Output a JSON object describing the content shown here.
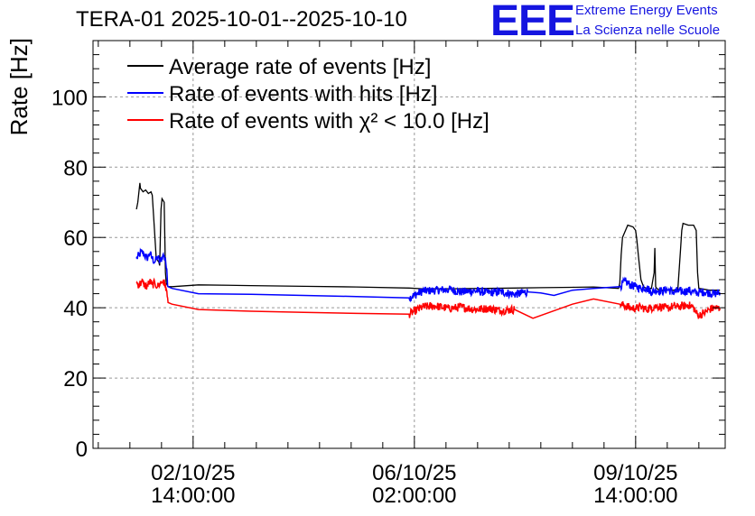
{
  "header": {
    "title": "TERA-01 2025-10-01--2025-10-10",
    "logo_text": "EEE",
    "logo_line1": "Extreme Energy Events",
    "logo_line2": "La Scienza nelle Scuole"
  },
  "chart_data": {
    "type": "line",
    "title": "TERA-01 2025-10-01--2025-10-10",
    "xlabel": "",
    "ylabel": "Rate [Hz]",
    "xunit": "hours since 2025-10-01 00:00",
    "xlim": [
      0,
      240
    ],
    "ylim": [
      0,
      116
    ],
    "yticks": [
      0,
      20,
      40,
      60,
      80,
      100
    ],
    "xticks": [
      {
        "x": 38,
        "label_line1": "02/10/25",
        "label_line2": "14:00:00"
      },
      {
        "x": 122,
        "label_line1": "06/10/25",
        "label_line2": "02:00:00"
      },
      {
        "x": 206,
        "label_line1": "09/10/25",
        "label_line2": "14:00:00"
      }
    ],
    "grid": true,
    "legend_position": "top-left",
    "series": [
      {
        "name": "Average rate of events [Hz]",
        "color": "#000000",
        "x": [
          16.5,
          17,
          17.8,
          18,
          19,
          20,
          21,
          22,
          22.5,
          23,
          24,
          25,
          25.3,
          25.8,
          26.2,
          27,
          27.5,
          27.8,
          28.5,
          30,
          40,
          60,
          80,
          100,
          120,
          125,
          135,
          150,
          160,
          170,
          182,
          190,
          199.5,
          200,
          200.5,
          201,
          203,
          205,
          206,
          206.5,
          207,
          208,
          208.5,
          209,
          210,
          212,
          213,
          213.3,
          213.6,
          214,
          215,
          220,
          222,
          223,
          223.5,
          224,
          226,
          228,
          229,
          229.5,
          230,
          234,
          238
        ],
        "values": [
          68,
          70,
          75.5,
          74,
          73,
          73.5,
          72.5,
          73,
          72,
          66,
          54,
          53,
          52,
          68,
          71,
          70,
          50,
          47,
          46,
          46,
          46.5,
          46.3,
          46.1,
          45.9,
          45.6,
          45.4,
          45.4,
          45.5,
          45.6,
          45.7,
          45.8,
          45.9,
          45.5,
          47,
          55,
          60,
          63.5,
          63,
          62,
          59,
          55,
          48,
          47,
          46,
          45.5,
          45.5,
          50,
          57,
          46,
          45.5,
          45,
          45,
          45,
          56,
          62,
          64,
          63.5,
          63.5,
          62,
          50,
          45.5,
          45,
          45
        ]
      },
      {
        "name": "Rate of events with hits [Hz]",
        "color": "#0000ff",
        "x": [
          16.5,
          17.5,
          18.5,
          19.5,
          20.5,
          21.5,
          22.5,
          23.5,
          24.5,
          25.5,
          26.5,
          27.5,
          28.5,
          30,
          40,
          60,
          80,
          100,
          120,
          125,
          135,
          140,
          145,
          150,
          155,
          160,
          165,
          170,
          175,
          182,
          190,
          200,
          202,
          204,
          206,
          208,
          210,
          212,
          214,
          216,
          218,
          220,
          222,
          224,
          226,
          228,
          230,
          232,
          234,
          236,
          238
        ],
        "values": [
          54,
          55,
          56,
          55,
          54,
          55.5,
          54,
          53,
          54.5,
          53,
          55,
          54,
          46,
          45.5,
          44,
          43.8,
          43.5,
          43.2,
          42.8,
          44.7,
          45.2,
          44.5,
          44.8,
          44.3,
          44.5,
          43.8,
          44.5,
          44.2,
          43.5,
          45,
          45.5,
          46,
          47.5,
          46.5,
          46,
          45.5,
          45.8,
          44.5,
          45,
          44.7,
          45.2,
          44.5,
          44.8,
          44.5,
          45,
          44.5,
          44.3,
          44.5,
          44.2,
          44,
          44.3
        ]
      },
      {
        "name": "Rate of events with χ² < 10.0 [Hz]",
        "color": "#ff0000",
        "x": [
          16.5,
          17.5,
          18.5,
          19.5,
          20.5,
          21.5,
          22.5,
          23.5,
          24.5,
          25.5,
          26.5,
          27.5,
          28.5,
          30,
          40,
          60,
          80,
          100,
          120,
          125,
          130,
          135,
          140,
          145,
          150,
          155,
          160,
          167,
          182,
          190,
          200,
          202,
          204,
          206,
          208,
          210,
          212,
          214,
          216,
          218,
          220,
          222,
          224,
          226,
          228,
          229,
          230,
          232,
          234,
          236,
          238
        ],
        "values": [
          47,
          46.5,
          47.5,
          46.5,
          46,
          47.5,
          46.5,
          47,
          46,
          47,
          47.5,
          46.5,
          41.5,
          41,
          39.5,
          39,
          38.7,
          38.4,
          38.2,
          40.2,
          40.5,
          39.8,
          40.2,
          39.5,
          39.8,
          39.2,
          39.5,
          37,
          41,
          42.5,
          41,
          40.5,
          40,
          39.8,
          40.2,
          39.5,
          40,
          40.5,
          40.2,
          39.8,
          40.4,
          40.2,
          40.5,
          40.8,
          40,
          38.5,
          37.8,
          38.5,
          39.5,
          40,
          39.8
        ]
      }
    ],
    "noise_amplitude": 1.2
  }
}
